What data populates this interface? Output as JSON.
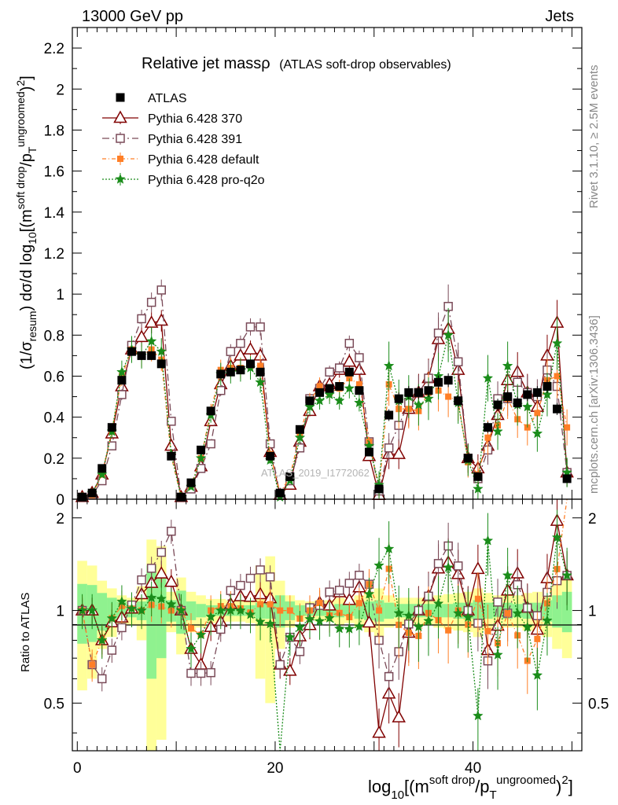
{
  "header": {
    "left": "13000 GeV pp",
    "right": "Jets"
  },
  "title": {
    "main": "Relative jet massρ",
    "sub": "(ATLAS soft-drop observables)"
  },
  "side_notes": {
    "top": "Rivet 3.1.10, ≥ 2.5M events",
    "bottom": "mcplots.cern.ch [arXiv:1306.3436]"
  },
  "watermark": "ATLAS_2019_I1772062",
  "ylabel_main": {
    "a": "(1/σ",
    "a_sub": "resum",
    "b": ") dσ/d log",
    "b_sub": "10",
    "c": "[(m",
    "c_sup": "soft drop",
    "d": "/p",
    "d_sub": "T",
    "d_sup": "ungroomed",
    "e": ")",
    "e_sup": "2",
    "f": "]"
  },
  "ylabel_ratio": "Ratio to ATLAS",
  "xlabel": {
    "a": "log",
    "a_sub": "10",
    "b": "[(m",
    "b_sup": "soft drop",
    "c": "/p",
    "c_sub": "T",
    "c_sup": "ungroomed",
    "d": ")",
    "d_sup": "2",
    "e": "]"
  },
  "legend": [
    {
      "name": "ATLAS",
      "color": "#000000",
      "marker": "square-filled"
    },
    {
      "name": "Pythia 6.428 370",
      "color": "#800000",
      "marker": "triangle-open"
    },
    {
      "name": "Pythia 6.428 391",
      "color": "#7a4a58",
      "marker": "square-open"
    },
    {
      "name": "Pythia 6.428 default",
      "color": "#ff7f27",
      "marker": "square-filled-small"
    },
    {
      "name": "Pythia 6.428 pro-q2o",
      "color": "#1a8c1a",
      "marker": "star"
    }
  ],
  "chart_data": {
    "type": "scatter",
    "x": [
      0.5,
      1.5,
      2.5,
      3.5,
      4.5,
      5.5,
      6.5,
      7.5,
      8.5,
      9.5,
      10.5,
      11.5,
      12.5,
      13.5,
      14.5,
      15.5,
      16.5,
      17.5,
      18.5,
      19.5,
      20.5,
      21.5,
      22.5,
      23.5,
      24.5,
      25.5,
      26.5,
      27.5,
      28.5,
      29.5,
      30.5,
      31.5,
      32.5,
      33.5,
      34.5,
      35.5,
      36.5,
      37.5,
      38.5,
      39.5,
      40.5,
      41.5,
      42.5,
      43.5,
      44.5,
      45.5,
      46.5,
      47.5,
      48.5,
      49.5
    ],
    "xlim": [
      -0.5,
      51
    ],
    "xticks": [
      0,
      20,
      40
    ],
    "main_ylim": [
      0,
      2.3
    ],
    "main_yticks": [
      0,
      0.2,
      0.4,
      0.6,
      0.8,
      1,
      1.2,
      1.4,
      1.6,
      1.8,
      2,
      2.2
    ],
    "ratio_ylim": [
      0.35,
      2.3
    ],
    "ratio_yticks": [
      0.5,
      1,
      2
    ],
    "log_y_ratio": true,
    "grid": false,
    "legend_position": "top-left",
    "series": [
      {
        "name": "ATLAS",
        "values": [
          0.01,
          0.03,
          0.15,
          0.35,
          0.58,
          0.72,
          0.7,
          0.7,
          0.66,
          0.21,
          0.01,
          0.08,
          0.24,
          0.43,
          0.61,
          0.62,
          0.63,
          0.66,
          0.62,
          0.21,
          0.03,
          0.11,
          0.34,
          0.48,
          0.52,
          0.54,
          0.55,
          0.62,
          0.53,
          0.23,
          0.05,
          0.41,
          0.49,
          0.52,
          0.52,
          0.53,
          0.57,
          0.58,
          0.48,
          0.2,
          0.11,
          0.35,
          0.46,
          0.5,
          0.47,
          0.51,
          0.52,
          0.55,
          0.44,
          0.1
        ]
      },
      {
        "name": "Pythia 6.428 370",
        "values": [
          0.01,
          0.03,
          0.12,
          0.32,
          0.55,
          0.73,
          0.79,
          0.86,
          0.87,
          0.26,
          0.01,
          0.06,
          0.16,
          0.38,
          0.56,
          0.65,
          0.7,
          0.73,
          0.7,
          0.23,
          0.02,
          0.07,
          0.28,
          0.43,
          0.55,
          0.56,
          0.63,
          0.67,
          0.63,
          0.21,
          0.02,
          0.22,
          0.22,
          0.44,
          0.52,
          0.59,
          0.78,
          0.83,
          0.63,
          0.2,
          0.15,
          0.26,
          0.41,
          0.58,
          0.62,
          0.52,
          0.45,
          0.7,
          0.86,
          0.13
        ]
      },
      {
        "name": "Pythia 6.428 391",
        "values": [
          0.01,
          0.02,
          0.09,
          0.26,
          0.51,
          0.75,
          0.88,
          0.96,
          1.02,
          0.38,
          0.01,
          0.05,
          0.15,
          0.27,
          0.53,
          0.72,
          0.76,
          0.84,
          0.84,
          0.27,
          0.02,
          0.09,
          0.25,
          0.49,
          0.54,
          0.62,
          0.64,
          0.76,
          0.69,
          0.28,
          0.04,
          0.25,
          0.36,
          0.47,
          0.52,
          0.59,
          0.81,
          0.94,
          0.67,
          0.2,
          0.1,
          0.24,
          0.49,
          0.49,
          0.57,
          0.52,
          0.5,
          0.63,
          0.55,
          0.13
        ]
      },
      {
        "name": "Pythia 6.428 default",
        "values": [
          0.01,
          0.02,
          0.12,
          0.33,
          0.6,
          0.73,
          0.7,
          0.73,
          0.68,
          0.21,
          0.01,
          0.07,
          0.2,
          0.43,
          0.63,
          0.64,
          0.64,
          0.65,
          0.65,
          0.22,
          0.03,
          0.11,
          0.32,
          0.48,
          0.55,
          0.52,
          0.54,
          0.59,
          0.56,
          0.28,
          0.05,
          0.56,
          0.44,
          0.44,
          0.43,
          0.52,
          0.53,
          0.5,
          0.48,
          0.18,
          0.12,
          0.3,
          0.36,
          0.49,
          0.39,
          0.35,
          0.42,
          0.58,
          0.6,
          0.35
        ]
      },
      {
        "name": "Pythia 6.428 pro-q2o",
        "values": [
          0.01,
          0.03,
          0.12,
          0.33,
          0.62,
          0.73,
          0.7,
          0.77,
          0.72,
          0.22,
          0.01,
          0.06,
          0.2,
          0.41,
          0.61,
          0.62,
          0.63,
          0.64,
          0.57,
          0.19,
          0.01,
          0.09,
          0.3,
          0.45,
          0.48,
          0.51,
          0.48,
          0.54,
          0.47,
          0.26,
          0.07,
          0.65,
          0.48,
          0.5,
          0.46,
          0.49,
          0.6,
          0.8,
          0.47,
          0.19,
          0.05,
          0.59,
          0.33,
          0.65,
          0.46,
          0.45,
          0.32,
          0.51,
          0.76,
          0.13
        ]
      }
    ],
    "band_inner": [
      0.22,
      0.21,
      0.14,
      0.1,
      0.07,
      0.05,
      0.07,
      0.4,
      0.3,
      0.08,
      0.16,
      0.07,
      0.05,
      0.04,
      0.04,
      0.04,
      0.04,
      0.04,
      0.06,
      0.06,
      0.12,
      0.07,
      0.04,
      0.04,
      0.04,
      0.04,
      0.05,
      0.04,
      0.06,
      0.07,
      0.08,
      0.06,
      0.05,
      0.05,
      0.05,
      0.05,
      0.05,
      0.05,
      0.06,
      0.06,
      0.08,
      0.06,
      0.05,
      0.06,
      0.05,
      0.06,
      0.06,
      0.08,
      0.12,
      0.15
    ],
    "band_outer": [
      0.45,
      0.4,
      0.25,
      0.18,
      0.12,
      0.1,
      0.2,
      0.7,
      0.62,
      0.15,
      0.28,
      0.15,
      0.12,
      0.09,
      0.09,
      0.08,
      0.08,
      0.09,
      0.4,
      0.5,
      0.25,
      0.12,
      0.08,
      0.07,
      0.08,
      0.08,
      0.1,
      0.09,
      0.12,
      0.15,
      0.18,
      0.12,
      0.1,
      0.1,
      0.1,
      0.1,
      0.12,
      0.13,
      0.14,
      0.15,
      0.18,
      0.14,
      0.12,
      0.12,
      0.12,
      0.14,
      0.15,
      0.18,
      0.25,
      0.3
    ]
  }
}
